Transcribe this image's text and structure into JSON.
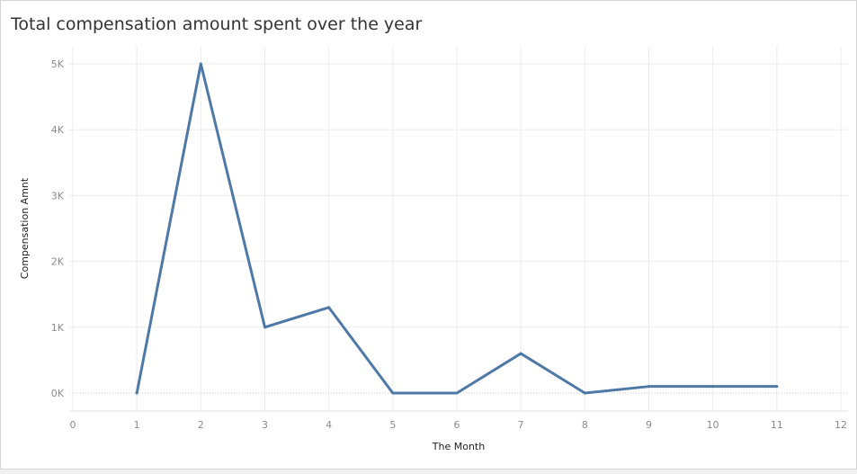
{
  "title": "Total compensation amount spent over the year",
  "chart_data": {
    "type": "line",
    "title": "Total compensation amount spent over the year",
    "xlabel": "The Month",
    "ylabel": "Compensation Amnt",
    "x_ticks": [
      "0",
      "1",
      "2",
      "3",
      "4",
      "5",
      "6",
      "7",
      "8",
      "9",
      "10",
      "11",
      "12"
    ],
    "y_ticks": [
      "0K",
      "1K",
      "2K",
      "3K",
      "4K",
      "5K"
    ],
    "xlim": [
      0,
      12
    ],
    "ylim": [
      -300,
      5000
    ],
    "grid": true,
    "series": [
      {
        "x": [
          1,
          2,
          3,
          4,
          5,
          6,
          7,
          8,
          9,
          10,
          11
        ],
        "values": [
          0,
          5000,
          1000,
          1300,
          0,
          0,
          600,
          0,
          100,
          100,
          100
        ]
      }
    ],
    "colors": {
      "line": "#4e79a7",
      "grid": "#ececec",
      "zero_line": "#c8c8c8"
    }
  }
}
